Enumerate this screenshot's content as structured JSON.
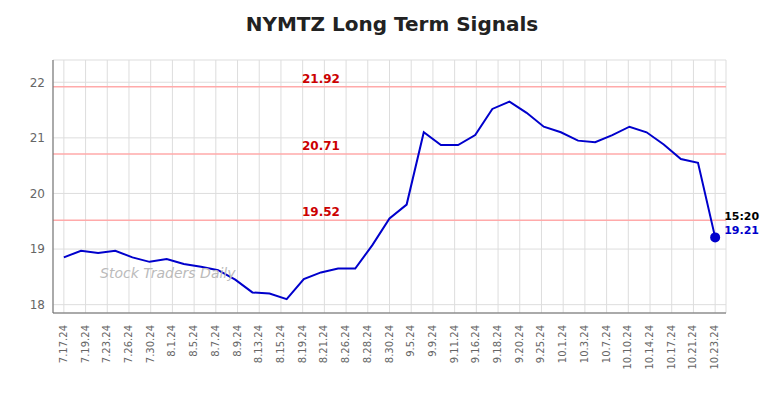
{
  "chart_data": {
    "type": "line",
    "title": "NYMTZ Long Term Signals",
    "color": "#0000cc",
    "watermark": "Stock Traders Daily",
    "grid": true,
    "xlim": [
      -0.5,
      30.5
    ],
    "xticks": [
      {
        "value": 0,
        "label": "7.17.24"
      },
      {
        "value": 1,
        "label": "7.19.24"
      },
      {
        "value": 2,
        "label": "7.23.24"
      },
      {
        "value": 3,
        "label": "7.26.24"
      },
      {
        "value": 4,
        "label": "7.30.24"
      },
      {
        "value": 5,
        "label": "8.1.24"
      },
      {
        "value": 6,
        "label": "8.5.24"
      },
      {
        "value": 7,
        "label": "8.7.24"
      },
      {
        "value": 8,
        "label": "8.9.24"
      },
      {
        "value": 9,
        "label": "8.13.24"
      },
      {
        "value": 10,
        "label": "8.15.24"
      },
      {
        "value": 11,
        "label": "8.19.24"
      },
      {
        "value": 12,
        "label": "8.21.24"
      },
      {
        "value": 13,
        "label": "8.26.24"
      },
      {
        "value": 14,
        "label": "8.28.24"
      },
      {
        "value": 15,
        "label": "8.30.24"
      },
      {
        "value": 16,
        "label": "9.5.24"
      },
      {
        "value": 17,
        "label": "9.9.24"
      },
      {
        "value": 18,
        "label": "9.11.24"
      },
      {
        "value": 19,
        "label": "9.16.24"
      },
      {
        "value": 20,
        "label": "9.18.24"
      },
      {
        "value": 21,
        "label": "9.20.24"
      },
      {
        "value": 22,
        "label": "9.25.24"
      },
      {
        "value": 23,
        "label": "10.1.24"
      },
      {
        "value": 24,
        "label": "10.3.24"
      },
      {
        "value": 25,
        "label": "10.7.24"
      },
      {
        "value": 26,
        "label": "10.10.24"
      },
      {
        "value": 27,
        "label": "10.14.24"
      },
      {
        "value": 28,
        "label": "10.17.24"
      },
      {
        "value": 29,
        "label": "10.21.24"
      },
      {
        "value": 30,
        "label": "10.23.24"
      }
    ],
    "ylim": [
      17.85,
      22.4
    ],
    "yticks": [
      18,
      19,
      20,
      21,
      22
    ],
    "x": [
      0,
      0.789474,
      1.578947,
      2.368421,
      3.157895,
      3.947368,
      4.736842,
      5.526316,
      6.315789,
      7.105263,
      7.894737,
      8.684211,
      9.473684,
      10.263158,
      11.052632,
      11.842105,
      12.631579,
      13.421053,
      14.210526,
      15,
      15.789474,
      16.578947,
      17.368421,
      18.157895,
      18.947368,
      19.736842,
      20.526316,
      21.315789,
      22.105263,
      22.894737,
      23.684211,
      24.473684,
      25.263158,
      26.052632,
      26.842105,
      27.631579,
      28.421053,
      29.210526,
      30
    ],
    "values": [
      18.85,
      18.97,
      18.93,
      18.97,
      18.85,
      18.77,
      18.82,
      18.73,
      18.68,
      18.62,
      18.45,
      18.22,
      18.2,
      18.1,
      18.46,
      18.58,
      18.65,
      18.65,
      19.07,
      19.55,
      19.8,
      21.1,
      20.87,
      20.87,
      21.05,
      21.52,
      21.65,
      21.45,
      21.2,
      21.1,
      20.95,
      20.92,
      21.05,
      21.2,
      21.1,
      20.88,
      20.62,
      20.55,
      19.21
    ],
    "reference_lines": [
      {
        "value": 21.92,
        "label": "21.92",
        "color": "#ffaaaa",
        "label_color": "#cc0000",
        "label_x": 11.842105
      },
      {
        "value": 20.71,
        "label": "20.71",
        "color": "#ffaaaa",
        "label_color": "#cc0000",
        "label_x": 11.842105
      },
      {
        "value": 19.52,
        "label": "19.52",
        "color": "#ffaaaa",
        "label_color": "#cc0000",
        "label_x": 11.842105
      }
    ],
    "annotations": [
      {
        "text": "15:20",
        "x": 30,
        "y": 19.21,
        "color": "#000000",
        "row": 1
      },
      {
        "text": "19.21",
        "x": 30,
        "y": 19.21,
        "color": "#0000cc",
        "marker": "circle",
        "row": 0
      }
    ]
  }
}
